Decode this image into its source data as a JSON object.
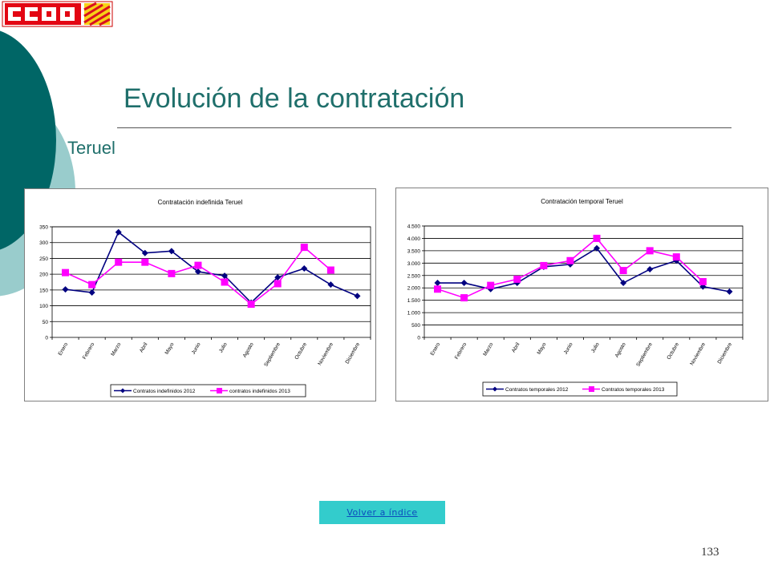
{
  "slide": {
    "logo_text": "CCOO",
    "title": "Evolución de la contratación",
    "subtitle": "Teruel",
    "back_button": "Volver a índice",
    "page_number": "133"
  },
  "chart_data": [
    {
      "type": "line",
      "title": "Contratación indefinida Teruel",
      "categories": [
        "Enero",
        "Febrero",
        "Marzo",
        "Abril",
        "Mayo",
        "Junio",
        "Julio",
        "Agosto",
        "Septiembre",
        "Octubre",
        "Noviembre",
        "Diciembre"
      ],
      "ylim": [
        0,
        350
      ],
      "yticks": [
        0,
        50,
        100,
        150,
        200,
        250,
        300,
        350
      ],
      "ytick_labels": [
        "0",
        "50",
        "100",
        "150",
        "200",
        "250",
        "300",
        "350"
      ],
      "grid": true,
      "legend": "bottom",
      "series": [
        {
          "name": "Contratos indefinidos 2012",
          "color": "#000080",
          "marker": "diamond",
          "values": [
            152,
            142,
            333,
            267,
            273,
            208,
            195,
            110,
            190,
            218,
            167,
            131
          ]
        },
        {
          "name": "contratos indefinidos 2013",
          "color": "#ff00ff",
          "marker": "square",
          "values": [
            205,
            167,
            238,
            238,
            202,
            228,
            175,
            105,
            170,
            285,
            213,
            null
          ]
        }
      ]
    },
    {
      "type": "line",
      "title": "Contratación temporal Teruel",
      "categories": [
        "Enero",
        "Febrero",
        "Marzo",
        "Abril",
        "Mayo",
        "Junio",
        "Julio",
        "Agosto",
        "Septiembre",
        "Octubre",
        "Noviembre",
        "Diciembre"
      ],
      "ylim": [
        0,
        4500
      ],
      "yticks": [
        0,
        500,
        1000,
        1500,
        2000,
        2500,
        3000,
        3500,
        4000,
        4500
      ],
      "ytick_labels": [
        "0",
        "500",
        "1.000",
        "1.500",
        "2.000",
        "2.500",
        "3.000",
        "3.500",
        "4.000",
        "4.500"
      ],
      "grid": true,
      "legend": "bottom",
      "series": [
        {
          "name": "Contratos temporales 2012",
          "color": "#000080",
          "marker": "diamond",
          "values": [
            2200,
            2200,
            1950,
            2200,
            2850,
            2950,
            3600,
            2200,
            2750,
            3100,
            2050,
            1850
          ]
        },
        {
          "name": "Contratos temporales 2013",
          "color": "#ff00ff",
          "marker": "square",
          "values": [
            1950,
            1600,
            2100,
            2350,
            2900,
            3100,
            4000,
            2700,
            3500,
            3250,
            2250,
            null
          ]
        }
      ]
    }
  ]
}
